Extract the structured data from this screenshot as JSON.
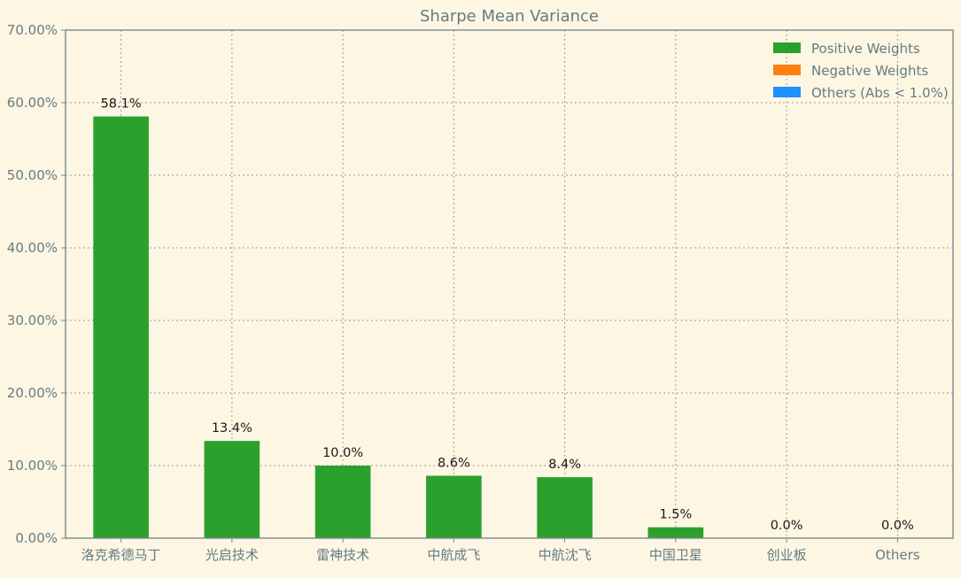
{
  "chart_data": {
    "type": "bar",
    "title": "Sharpe Mean Variance",
    "xlabel": "",
    "ylabel": "",
    "categories": [
      "洛克希德马丁",
      "光启技术",
      "雷神技术",
      "中航成飞",
      "中航沈飞",
      "中国卫星",
      "创业板",
      "Others"
    ],
    "values": [
      58.1,
      13.4,
      10.0,
      8.6,
      8.4,
      1.5,
      0.0,
      0.0
    ],
    "data_labels": [
      "58.1%",
      "13.4%",
      "10.0%",
      "8.6%",
      "8.4%",
      "1.5%",
      "0.0%",
      "0.0%"
    ],
    "ylim": [
      0,
      70
    ],
    "yticks": [
      0,
      10,
      20,
      30,
      40,
      50,
      60,
      70
    ],
    "ytick_labels": [
      "0.00%",
      "10.00%",
      "20.00%",
      "30.00%",
      "40.00%",
      "50.00%",
      "60.00%",
      "70.00%"
    ],
    "grid": true,
    "legend_position": "top-right",
    "legend": [
      {
        "label": "Positive Weights",
        "color": "#2ca02c"
      },
      {
        "label": "Negative Weights",
        "color": "#ff7f0e"
      },
      {
        "label": "Others (Abs < 1.0%)",
        "color": "#1e90ff"
      }
    ],
    "bar_color": "#2ca02c",
    "background_color": "#fdf6e3",
    "text_color": "#657b83"
  }
}
